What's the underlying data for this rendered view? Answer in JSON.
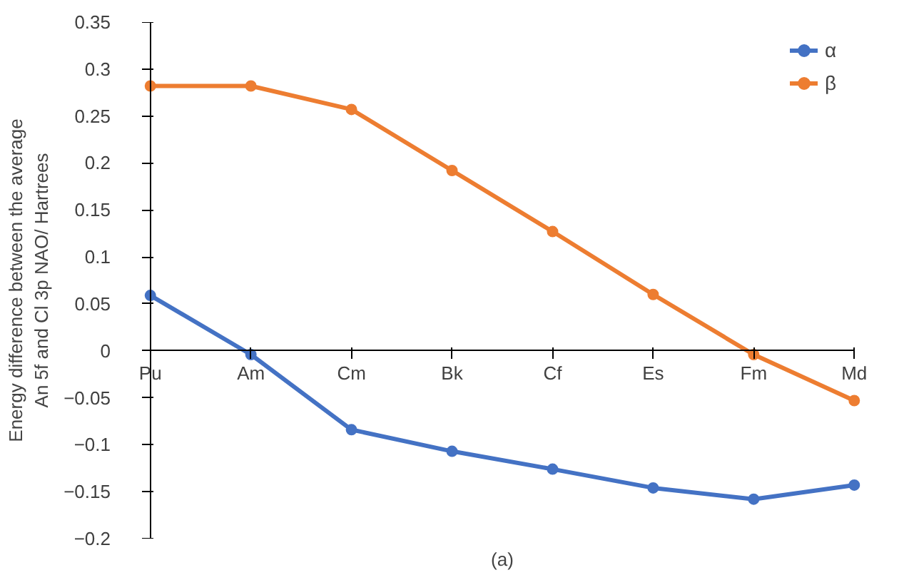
{
  "chart_data": {
    "type": "line",
    "ylabel": "Energy difference between the average\nAn 5f and Cl 3p NAO/ Hartrees",
    "categories": [
      "Pu",
      "Am",
      "Cm",
      "Bk",
      "Cf",
      "Es",
      "Fm",
      "Md"
    ],
    "series": [
      {
        "name": "α",
        "color": "#4472c4",
        "values": [
          0.059,
          -0.004,
          -0.084,
          -0.107,
          -0.126,
          -0.146,
          -0.158,
          -0.143
        ]
      },
      {
        "name": "β",
        "color": "#ed7d31",
        "values": [
          0.282,
          0.282,
          0.257,
          0.192,
          0.127,
          0.06,
          -0.004,
          -0.053
        ]
      }
    ],
    "ylim": [
      -0.2,
      0.35
    ],
    "yticks": [
      -0.2,
      -0.15,
      -0.1,
      -0.05,
      0,
      0.05,
      0.1,
      0.15,
      0.2,
      0.25,
      0.3,
      0.35
    ],
    "grid": false,
    "legend": "top right",
    "marker": "circle",
    "line_style": "solid",
    "annotations": [
      "(a)"
    ]
  }
}
